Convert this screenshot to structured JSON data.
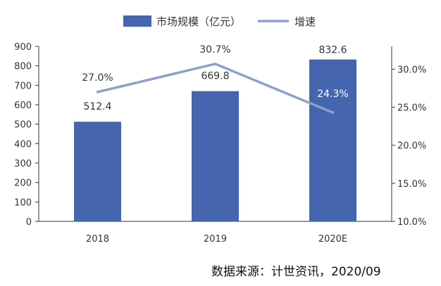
{
  "chart_data": {
    "type": "bar",
    "categories": [
      "2018",
      "2019",
      "2020E"
    ],
    "series": [
      {
        "name": "市场规模（亿元）",
        "type": "bar",
        "axis": "left",
        "values": [
          512.4,
          669.8,
          832.6
        ],
        "labels": [
          "512.4",
          "669.8",
          "832.6"
        ],
        "color": "#4565AE"
      },
      {
        "name": "增速",
        "type": "line",
        "axis": "right",
        "values": [
          27.0,
          30.7,
          24.3
        ],
        "labels": [
          "27.0%",
          "30.7%",
          "24.3%"
        ],
        "color": "#8E9FCF"
      }
    ],
    "y_left": {
      "ylim": [
        0,
        900
      ],
      "ticks": [
        "0",
        "100",
        "200",
        "300",
        "400",
        "500",
        "600",
        "700",
        "800",
        "900"
      ]
    },
    "y_right": {
      "ylim": [
        10,
        33
      ],
      "ticks": [
        "10.0%",
        "15.0%",
        "20.0%",
        "25.0%",
        "30.0%"
      ]
    },
    "grid": false,
    "legend_position": "top",
    "source": "数据来源：计世资讯，2020/09"
  }
}
